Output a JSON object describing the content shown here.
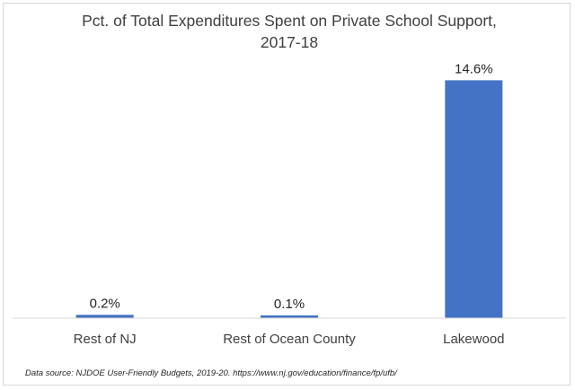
{
  "chart_data": {
    "type": "bar",
    "title_lines": [
      "Pct. of Total Expenditures Spent on Private School Support,",
      "2017-18"
    ],
    "categories": [
      "Rest of NJ",
      "Rest of Ocean County",
      "Lakewood"
    ],
    "values": [
      0.2,
      0.1,
      14.6
    ],
    "data_labels": [
      "0.2%",
      "0.1%",
      "14.6%"
    ],
    "xlabel": "",
    "ylabel": "",
    "ylim": [
      0,
      16
    ],
    "grid": false,
    "legend": "none",
    "bar_color": "#4472C4",
    "source_note": "Data source: NJDOE User-Friendly Budgets, 2019-20. https://www.nj.gov/education/finance/fp/ufb/"
  }
}
